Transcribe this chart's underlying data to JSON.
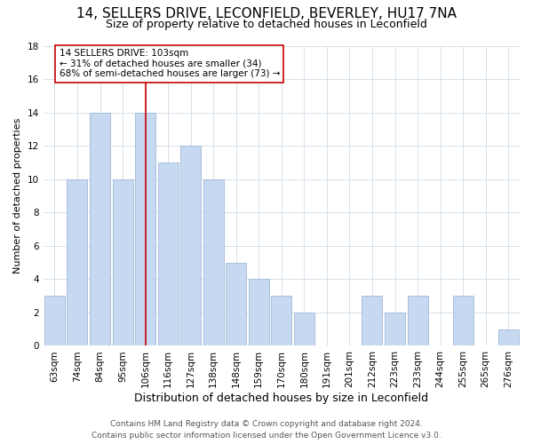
{
  "title1": "14, SELLERS DRIVE, LECONFIELD, BEVERLEY, HU17 7NA",
  "title2": "Size of property relative to detached houses in Leconfield",
  "xlabel": "Distribution of detached houses by size in Leconfield",
  "ylabel": "Number of detached properties",
  "bar_labels": [
    "63sqm",
    "74sqm",
    "84sqm",
    "95sqm",
    "106sqm",
    "116sqm",
    "127sqm",
    "138sqm",
    "148sqm",
    "159sqm",
    "170sqm",
    "180sqm",
    "191sqm",
    "201sqm",
    "212sqm",
    "223sqm",
    "233sqm",
    "244sqm",
    "255sqm",
    "265sqm",
    "276sqm"
  ],
  "bar_values": [
    3,
    10,
    14,
    10,
    14,
    11,
    12,
    10,
    5,
    4,
    3,
    2,
    0,
    0,
    3,
    2,
    3,
    0,
    3,
    0,
    1
  ],
  "bar_color": "#c6d9f0",
  "bar_edge_color": "#a0b8d8",
  "vline_x": 4,
  "vline_color": "#cc0000",
  "annotation_line1": "14 SELLERS DRIVE: 103sqm",
  "annotation_line2": "← 31% of detached houses are smaller (34)",
  "annotation_line3": "68% of semi-detached houses are larger (73) →",
  "annotation_box_color": "#ffffff",
  "annotation_box_edge": "#cc0000",
  "ylim": [
    0,
    18
  ],
  "yticks": [
    0,
    2,
    4,
    6,
    8,
    10,
    12,
    14,
    16,
    18
  ],
  "footer1": "Contains HM Land Registry data © Crown copyright and database right 2024.",
  "footer2": "Contains public sector information licensed under the Open Government Licence v3.0.",
  "title1_fontsize": 11,
  "title2_fontsize": 9,
  "xlabel_fontsize": 9,
  "ylabel_fontsize": 8,
  "tick_fontsize": 7.5,
  "annotation_fontsize": 7.5,
  "footer_fontsize": 6.5
}
